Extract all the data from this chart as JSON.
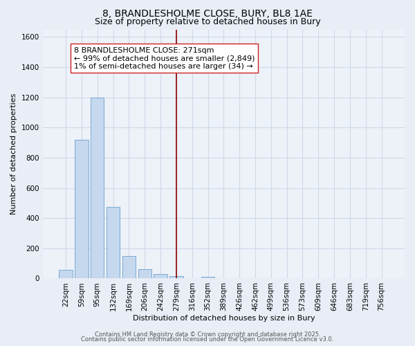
{
  "title_line1": "8, BRANDLESHOLME CLOSE, BURY, BL8 1AE",
  "title_line2": "Size of property relative to detached houses in Bury",
  "xlabel": "Distribution of detached houses by size in Bury",
  "ylabel": "Number of detached properties",
  "categories": [
    "22sqm",
    "59sqm",
    "95sqm",
    "132sqm",
    "169sqm",
    "206sqm",
    "242sqm",
    "279sqm",
    "316sqm",
    "352sqm",
    "389sqm",
    "426sqm",
    "462sqm",
    "499sqm",
    "536sqm",
    "573sqm",
    "609sqm",
    "646sqm",
    "683sqm",
    "719sqm",
    "756sqm"
  ],
  "values": [
    55,
    920,
    1200,
    475,
    150,
    60,
    30,
    15,
    0,
    10,
    0,
    0,
    0,
    0,
    0,
    0,
    0,
    0,
    0,
    0,
    0
  ],
  "bar_color": "#c5d8ee",
  "bar_edge_color": "#7aaad4",
  "vline_pos": 7,
  "vline_color": "#8b0000",
  "annotation_line1": "8 BRANDLESHOLME CLOSE: 271sqm",
  "annotation_line2": "← 99% of detached houses are smaller (2,849)",
  "annotation_line3": "1% of semi-detached houses are larger (34) →",
  "ylim": [
    0,
    1650
  ],
  "yticks": [
    0,
    200,
    400,
    600,
    800,
    1000,
    1200,
    1400,
    1600
  ],
  "background_color": "#e8edf6",
  "plot_bg_color": "#edf1f8",
  "footer_line1": "Contains HM Land Registry data © Crown copyright and database right 2025.",
  "footer_line2": "Contains public sector information licensed under the Open Government Licence v3.0.",
  "grid_color": "#d0d8e8",
  "title_fontsize": 10,
  "subtitle_fontsize": 9,
  "annotation_fontsize": 8,
  "axis_label_fontsize": 8,
  "tick_fontsize": 7.5,
  "footer_fontsize": 6
}
